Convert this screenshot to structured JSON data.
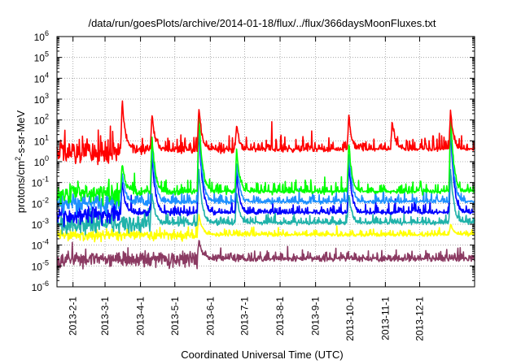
{
  "chart_data": {
    "type": "line",
    "title": "/data/run/goesPlots/archive/2014-01-18/flux/../flux/366daysMoonFluxes.txt",
    "xlabel": "Coordinated Universal Time (UTC)",
    "ylabel": "protons/cm²-s-sr-MeV",
    "ylabel_parts": {
      "before": "protons/cm",
      "sup": "2",
      "after": "-s-sr-MeV"
    },
    "yscale": "log",
    "ylim": [
      1e-06,
      1000000.0
    ],
    "xlim": [
      "2013-01-18",
      "2014-01-18"
    ],
    "grid": true,
    "legend": "none",
    "xticks": [
      {
        "label": "2013-2-1",
        "date": "2013-02-01"
      },
      {
        "label": "2013-3-1",
        "date": "2013-03-01"
      },
      {
        "label": "2013-4-1",
        "date": "2013-04-01"
      },
      {
        "label": "2013-5-1",
        "date": "2013-05-01"
      },
      {
        "label": "2013-6-1",
        "date": "2013-06-01"
      },
      {
        "label": "2013-7-1",
        "date": "2013-07-01"
      },
      {
        "label": "2013-8-1",
        "date": "2013-08-01"
      },
      {
        "label": "2013-9-1",
        "date": "2013-09-01"
      },
      {
        "label": "2013-10-1",
        "date": "2013-10-01"
      },
      {
        "label": "2013-11-1",
        "date": "2013-11-01"
      },
      {
        "label": "2013-12-1",
        "date": "2013-12-01"
      }
    ],
    "yticks": [
      {
        "value": 1e-06,
        "mant": "10",
        "exp": "-6"
      },
      {
        "value": 1e-05,
        "mant": "10",
        "exp": "-5"
      },
      {
        "value": 0.0001,
        "mant": "10",
        "exp": "-4"
      },
      {
        "value": 0.001,
        "mant": "10",
        "exp": "-3"
      },
      {
        "value": 0.01,
        "mant": "10",
        "exp": "-2"
      },
      {
        "value": 0.1,
        "mant": "10",
        "exp": "-1"
      },
      {
        "value": 1.0,
        "mant": "10",
        "exp": "0"
      },
      {
        "value": 10.0,
        "mant": "10",
        "exp": "1"
      },
      {
        "value": 100.0,
        "mant": "10",
        "exp": "2"
      },
      {
        "value": 1000.0,
        "mant": "10",
        "exp": "3"
      },
      {
        "value": 10000.0,
        "mant": "10",
        "exp": "4"
      },
      {
        "value": 100000.0,
        "mant": "10",
        "exp": "5"
      },
      {
        "value": 1000000.0,
        "mant": "10",
        "exp": "6"
      }
    ],
    "series": [
      {
        "color": "#8b3a62",
        "baseline": 2e-05,
        "noise": 0.18,
        "events": [
          {
            "date": "2013-05-22",
            "peak": 0.0002
          }
        ]
      },
      {
        "color": "#ffff00",
        "baseline": 0.0003,
        "noise": 0.12,
        "events": [
          {
            "date": "2013-05-22",
            "peak": 0.003
          },
          {
            "date": "2013-12-28",
            "peak": 0.001
          }
        ]
      },
      {
        "color": "#20b2aa",
        "baseline": 0.001,
        "noise": 0.2,
        "events": [
          {
            "date": "2013-04-11",
            "peak": 0.03
          },
          {
            "date": "2013-05-22",
            "peak": 0.5
          },
          {
            "date": "2013-06-24",
            "peak": 0.03
          },
          {
            "date": "2013-09-30",
            "peak": 0.03
          },
          {
            "date": "2013-12-28",
            "peak": 0.5
          }
        ]
      },
      {
        "color": "#0000ff",
        "baseline": 0.003,
        "noise": 0.22,
        "events": [
          {
            "date": "2013-03-16",
            "peak": 0.1
          },
          {
            "date": "2013-04-11",
            "peak": 3
          },
          {
            "date": "2013-05-22",
            "peak": 80
          },
          {
            "date": "2013-06-24",
            "peak": 0.3
          },
          {
            "date": "2013-09-30",
            "peak": 1
          },
          {
            "date": "2013-12-28",
            "peak": 60
          }
        ]
      },
      {
        "color": "#1e90ff",
        "baseline": 0.01,
        "noise": 0.22,
        "events": [
          {
            "date": "2013-03-16",
            "peak": 0.3
          },
          {
            "date": "2013-04-11",
            "peak": 8
          },
          {
            "date": "2013-05-22",
            "peak": 150
          },
          {
            "date": "2013-06-24",
            "peak": 1
          },
          {
            "date": "2013-09-30",
            "peak": 3
          },
          {
            "date": "2013-12-28",
            "peak": 100
          }
        ]
      },
      {
        "color": "#00ff00",
        "baseline": 0.03,
        "noise": 0.25,
        "events": [
          {
            "date": "2013-03-16",
            "peak": 1
          },
          {
            "date": "2013-04-11",
            "peak": 20
          },
          {
            "date": "2013-05-22",
            "peak": 300
          },
          {
            "date": "2013-06-24",
            "peak": 5
          },
          {
            "date": "2013-09-30",
            "peak": 10
          },
          {
            "date": "2013-12-28",
            "peak": 200
          }
        ]
      },
      {
        "color": "#ff0000",
        "baseline": 3,
        "noise": 0.3,
        "events": [
          {
            "date": "2013-03-16",
            "peak": 1000
          },
          {
            "date": "2013-04-11",
            "peak": 200
          },
          {
            "date": "2013-05-22",
            "peak": 400
          },
          {
            "date": "2013-06-24",
            "peak": 50
          },
          {
            "date": "2013-09-30",
            "peak": 200
          },
          {
            "date": "2013-11-07",
            "peak": 100
          },
          {
            "date": "2013-12-28",
            "peak": 300
          }
        ]
      }
    ]
  }
}
